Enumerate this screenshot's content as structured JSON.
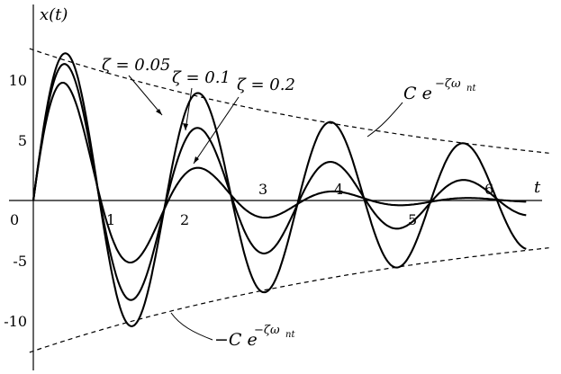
{
  "chart_data": {
    "type": "line",
    "xlabel": "t",
    "ylabel": "x(t)",
    "xlim": [
      0,
      6.5
    ],
    "ylim": [
      -12.5,
      14.5
    ],
    "x_ticks": [
      "1",
      "2",
      "3",
      "4",
      "5",
      "6"
    ],
    "x_origin_label": "0",
    "y_ticks": [
      {
        "value": 10,
        "label": "10"
      },
      {
        "value": 5,
        "label": "5"
      },
      {
        "value": -5,
        "label": "-5"
      },
      {
        "value": -10,
        "label": "-10"
      }
    ],
    "series": [
      {
        "name": "ζ = 0.05",
        "zeta": 0.05
      },
      {
        "name": "ζ = 0.1",
        "zeta": 0.1
      },
      {
        "name": "ζ = 0.2",
        "zeta": 0.2
      }
    ],
    "envelopes": [
      {
        "name": "upper-envelope",
        "label_prefix": "C e",
        "exponent": "−ζω",
        "subscript": "nt",
        "C": 12.5
      },
      {
        "name": "lower-envelope",
        "label_prefix": "−C e",
        "exponent": "−ζω",
        "subscript": "nt",
        "C": 12.5
      }
    ],
    "natural_frequency_rad_per_unit": 3.6,
    "grid": false
  }
}
